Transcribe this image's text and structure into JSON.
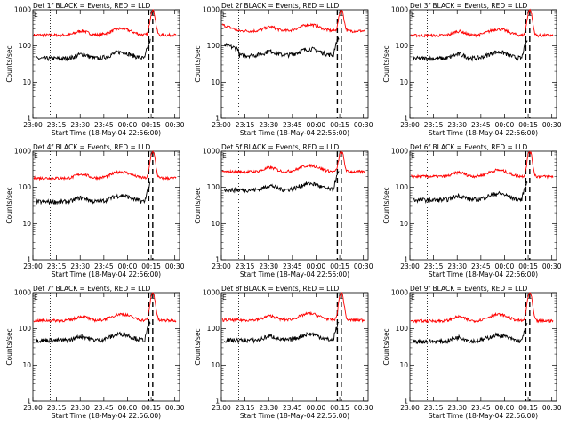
{
  "chart_data": {
    "type": "line",
    "yscale": "log",
    "ylim": [
      1,
      1000
    ],
    "yticks": [
      "1",
      "10",
      "100",
      "1000"
    ],
    "ylabel": "Counts/sec",
    "xlabel": "Start Time (18-May-04 22:56:00)",
    "xticks": [
      "23:00",
      "23:15",
      "23:30",
      "23:45",
      "00:00",
      "00:15",
      "00:30"
    ],
    "x_minutes_per_tick": 15,
    "series_colors": {
      "events": "#000000",
      "lld": "#ff0000"
    },
    "markers": [
      "E",
      "C"
    ],
    "panels": [
      {
        "title": "Det 1f BLACK = Events, RED = LLD",
        "lld_base": 200,
        "events_base": 45,
        "peak": 1000,
        "early_rise": 0
      },
      {
        "title": "Det 2f BLACK = Events, RED = LLD",
        "lld_base": 260,
        "events_base": 55,
        "peak": 1000,
        "early_rise": 1
      },
      {
        "title": "Det 3f BLACK = Events, RED = LLD",
        "lld_base": 195,
        "events_base": 45,
        "peak": 1000,
        "early_rise": 0
      },
      {
        "title": "Det 4f BLACK = Events, RED = LLD",
        "lld_base": 180,
        "events_base": 40,
        "peak": 1000,
        "early_rise": 0
      },
      {
        "title": "Det 5f BLACK = Events, RED = LLD",
        "lld_base": 270,
        "events_base": 85,
        "peak": 1000,
        "early_rise": 0
      },
      {
        "title": "Det 6f BLACK = Events, RED = LLD",
        "lld_base": 200,
        "events_base": 45,
        "peak": 1000,
        "early_rise": 0
      },
      {
        "title": "Det 7f BLACK = Events, RED = LLD",
        "lld_base": 170,
        "events_base": 48,
        "peak": 1000,
        "early_rise": 0
      },
      {
        "title": "Det 8f BLACK = Events, RED = LLD",
        "lld_base": 175,
        "events_base": 48,
        "peak": 1000,
        "early_rise": 0
      },
      {
        "title": "Det 9f BLACK = Events, RED = LLD",
        "lld_base": 165,
        "events_base": 45,
        "peak": 1000,
        "early_rise": 0
      }
    ]
  }
}
